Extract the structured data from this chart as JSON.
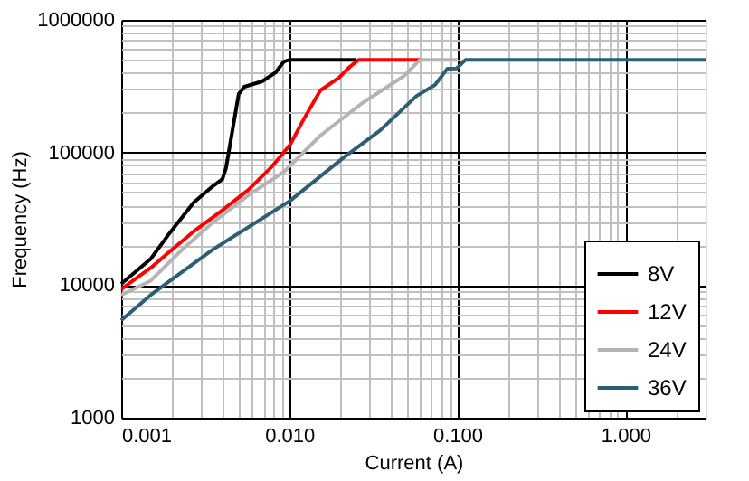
{
  "chart_data": {
    "type": "line",
    "xlabel": "Current (A)",
    "ylabel": "Frequency (Hz)",
    "log": "xy",
    "grid": true,
    "legend": "bottom right",
    "line_style": "solid",
    "xlim": [
      0.001,
      3
    ],
    "ylim": [
      1000,
      1000000
    ],
    "xticks": [
      {
        "value": 0.001,
        "label": "0.001"
      },
      {
        "value": 0.002,
        "label": null
      },
      {
        "value": 0.003,
        "label": null
      },
      {
        "value": 0.004,
        "label": null
      },
      {
        "value": 0.005,
        "label": null
      },
      {
        "value": 0.006,
        "label": null
      },
      {
        "value": 0.007,
        "label": null
      },
      {
        "value": 0.008,
        "label": null
      },
      {
        "value": 0.009,
        "label": null
      },
      {
        "value": 0.01,
        "label": "0.010"
      },
      {
        "value": 0.02,
        "label": null
      },
      {
        "value": 0.03,
        "label": null
      },
      {
        "value": 0.04,
        "label": null
      },
      {
        "value": 0.05,
        "label": null
      },
      {
        "value": 0.06,
        "label": null
      },
      {
        "value": 0.07,
        "label": null
      },
      {
        "value": 0.08,
        "label": null
      },
      {
        "value": 0.09,
        "label": null
      },
      {
        "value": 0.1,
        "label": "0.100"
      },
      {
        "value": 0.2,
        "label": null
      },
      {
        "value": 0.3,
        "label": null
      },
      {
        "value": 0.4,
        "label": null
      },
      {
        "value": 0.5,
        "label": null
      },
      {
        "value": 0.6,
        "label": null
      },
      {
        "value": 0.7,
        "label": null
      },
      {
        "value": 0.8,
        "label": null
      },
      {
        "value": 0.9,
        "label": null
      },
      {
        "value": 1,
        "label": "1.000"
      },
      {
        "value": 2,
        "label": null
      }
    ],
    "yticks": [
      1000,
      {
        "value": 2000,
        "label": null
      },
      {
        "value": 3000,
        "label": null
      },
      {
        "value": 4000,
        "label": null
      },
      {
        "value": 5000,
        "label": null
      },
      {
        "value": 6000,
        "label": null
      },
      {
        "value": 7000,
        "label": null
      },
      {
        "value": 8000,
        "label": null
      },
      {
        "value": 9000,
        "label": null
      },
      10000,
      {
        "value": 20000,
        "label": null
      },
      {
        "value": 30000,
        "label": null
      },
      {
        "value": 40000,
        "label": null
      },
      {
        "value": 50000,
        "label": null
      },
      {
        "value": 60000,
        "label": null
      },
      {
        "value": 70000,
        "label": null
      },
      {
        "value": 80000,
        "label": null
      },
      {
        "value": 90000,
        "label": null
      },
      100000,
      {
        "value": 200000,
        "label": null
      },
      {
        "value": 300000,
        "label": null
      },
      {
        "value": 400000,
        "label": null
      },
      {
        "value": 500000,
        "label": null
      },
      {
        "value": 600000,
        "label": null
      },
      {
        "value": 700000,
        "label": null
      },
      {
        "value": 800000,
        "label": null
      },
      {
        "value": 900000,
        "label": null
      },
      1000000
    ],
    "series": [
      {
        "name": "8V",
        "color": "#000000",
        "x": [
          0.001,
          0.0015,
          0.0019,
          0.0027,
          0.0035,
          0.004,
          0.0042,
          0.005,
          0.0054,
          0.0069,
          0.0083,
          0.0093,
          0.0101,
          0.025
        ],
        "values": [
          10200,
          15800,
          23800,
          41900,
          55600,
          63000,
          76000,
          276000,
          313000,
          344000,
          402000,
          485000,
          500000,
          500000
        ]
      },
      {
        "name": "12V",
        "color": "#ff0000",
        "x": [
          0.001,
          0.0015,
          0.0019,
          0.0027,
          0.0039,
          0.0057,
          0.0079,
          0.0101,
          0.012,
          0.0153,
          0.0197,
          0.0229,
          0.0259,
          0.06
        ],
        "values": [
          9300,
          13500,
          17500,
          25400,
          35800,
          52200,
          78500,
          114000,
          172000,
          294000,
          365000,
          442000,
          500000,
          500000
        ]
      },
      {
        "name": "24V",
        "color": "#b4b4b4",
        "x": [
          0.001,
          0.0015,
          0.0023,
          0.0035,
          0.0057,
          0.0093,
          0.0153,
          0.0272,
          0.0482,
          0.06,
          0.1
        ],
        "values": [
          8430,
          10800,
          18500,
          29600,
          47500,
          71500,
          134000,
          236000,
          378000,
          500000,
          500000
        ]
      },
      {
        "name": "36V",
        "color": "#2e5e73",
        "x": [
          0.001,
          0.0015,
          0.0035,
          0.0101,
          0.0211,
          0.0348,
          0.0572,
          0.0736,
          0.0873,
          0.099,
          0.112,
          0.143,
          3
        ],
        "values": [
          5430,
          8430,
          18500,
          43200,
          91800,
          147000,
          267000,
          323000,
          429000,
          430000,
          500000,
          500000,
          500000
        ]
      }
    ]
  }
}
